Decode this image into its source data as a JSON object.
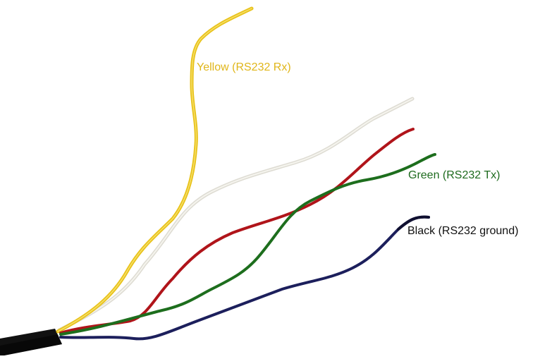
{
  "labels": {
    "yellow": "Yellow (RS232 Rx)",
    "green": "Green (RS232 Tx)",
    "black": "Black (RS232 ground)"
  },
  "colors": {
    "yellow_wire": "#e8c21a",
    "yellow_text": "#e0b61a",
    "white_wire": "#e6e4dc",
    "red_wire": "#b0141a",
    "green_wire": "#1d6e1d",
    "green_text": "#1e6b1e",
    "black_wire": "#1c1f5c",
    "black_text": "#111111",
    "cable_jacket": "#111111"
  }
}
